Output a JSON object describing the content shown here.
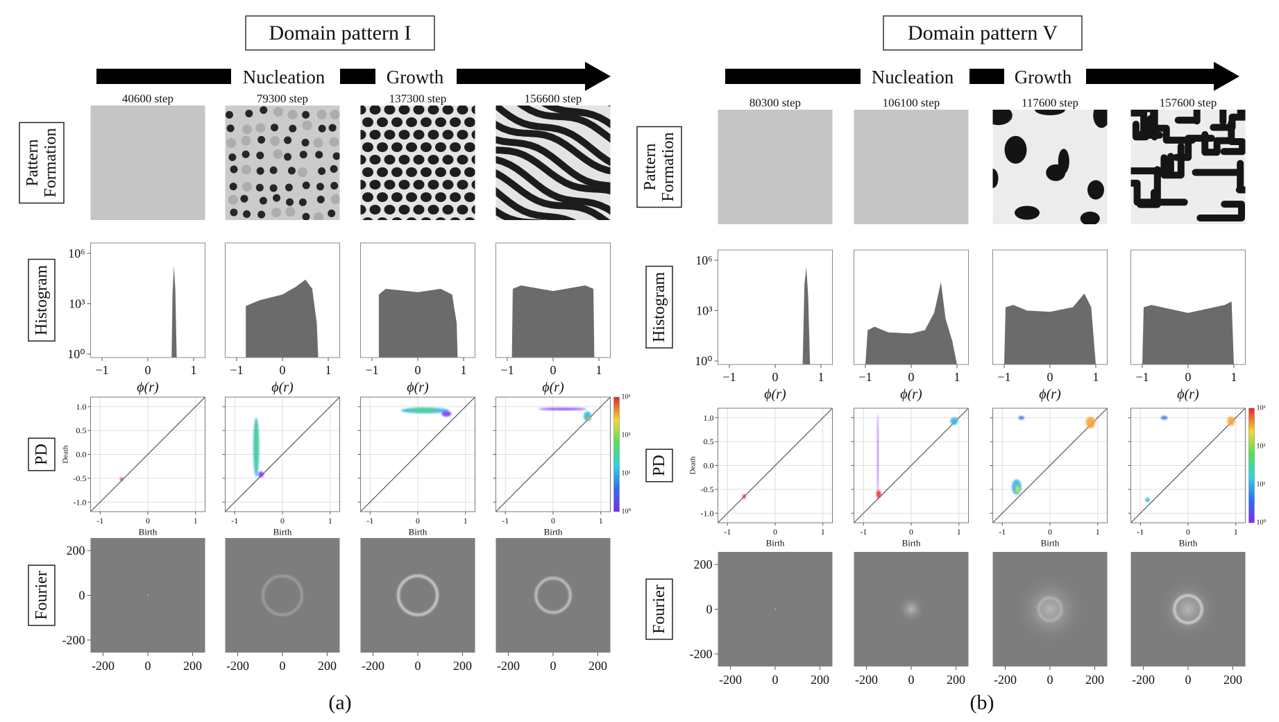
{
  "panels": [
    {
      "title": "Domain pattern I",
      "stages": [
        "Nucleation",
        "Growth"
      ],
      "label": "(a)",
      "row_labels": {
        "pattern": [
          "Pattern",
          "Formation"
        ],
        "histogram": "Histogram",
        "pd": "PD",
        "fourier": "Fourier"
      },
      "hist_yticks": [
        "10⁰",
        "10³",
        "10⁶"
      ],
      "pd_yticks": [
        "1.0",
        "0.5",
        "0.0",
        "-0.5",
        "-1.0"
      ],
      "pd_ylabel": "Death",
      "colorbar_ticks": [
        "10⁰",
        "10¹",
        "10²",
        "10³"
      ],
      "fourier_yticks": [
        "200",
        "0",
        "-200"
      ],
      "columns": [
        {
          "step": "40600  step",
          "hist_xticks": [
            "−1",
            "0",
            "1"
          ],
          "hist_xlabel": "ϕ(r)",
          "pd_xticks": [
            "-1",
            "0",
            "1"
          ],
          "pd_xlabel": "Birth",
          "fourier_xticks": [
            "-200",
            "0",
            "200"
          ]
        },
        {
          "step": "79300  step",
          "hist_xticks": [
            "−1",
            "0",
            "1"
          ],
          "hist_xlabel": "ϕ(r)",
          "pd_xticks": [
            "-1",
            "0",
            "1"
          ],
          "pd_xlabel": "Birth",
          "fourier_xticks": [
            "-200",
            "0",
            "200"
          ]
        },
        {
          "step": "137300  step",
          "hist_xticks": [
            "−1",
            "0",
            "1"
          ],
          "hist_xlabel": "ϕ(r)",
          "pd_xticks": [
            "-1",
            "0",
            "1"
          ],
          "pd_xlabel": "Birth",
          "fourier_xticks": [
            "-200",
            "0",
            "200"
          ]
        },
        {
          "step": "156600  step",
          "hist_xticks": [
            "−1",
            "0",
            "1"
          ],
          "hist_xlabel": "ϕ(r)",
          "pd_xticks": [
            "-1",
            "0",
            "1"
          ],
          "pd_xlabel": "Birth",
          "fourier_xticks": [
            "-200",
            "0",
            "200"
          ]
        }
      ]
    },
    {
      "title": "Domain pattern V",
      "stages": [
        "Nucleation",
        "Growth"
      ],
      "label": "(b)",
      "row_labels": {
        "pattern": [
          "Pattern",
          "Formation"
        ],
        "histogram": "Histogram",
        "pd": "PD",
        "fourier": "Fourier"
      },
      "hist_yticks": [
        "10⁰",
        "10³",
        "10⁶"
      ],
      "pd_yticks": [
        "1.0",
        "0.5",
        "0.0",
        "-0.5",
        "-1.0"
      ],
      "pd_ylabel": "Death",
      "colorbar_ticks": [
        "10⁰",
        "10¹",
        "10²",
        "10³"
      ],
      "fourier_yticks": [
        "200",
        "0",
        "-200"
      ],
      "columns": [
        {
          "step": "80300  step",
          "hist_xticks": [
            "−1",
            "0",
            "1"
          ],
          "hist_xlabel": "ϕ(r)",
          "pd_xticks": [
            "-1",
            "0",
            "1"
          ],
          "pd_xlabel": "Birth",
          "fourier_xticks": [
            "-200",
            "0",
            "200"
          ]
        },
        {
          "step": "106100  step",
          "hist_xticks": [
            "−1",
            "0",
            "1"
          ],
          "hist_xlabel": "ϕ(r)",
          "pd_xticks": [
            "-1",
            "0",
            "1"
          ],
          "pd_xlabel": "Birth",
          "fourier_xticks": [
            "-200",
            "0",
            "200"
          ]
        },
        {
          "step": "117600  step",
          "hist_xticks": [
            "−1",
            "0",
            "1"
          ],
          "hist_xlabel": "ϕ(r)",
          "pd_xticks": [
            "-1",
            "0",
            "1"
          ],
          "pd_xlabel": "Birth",
          "fourier_xticks": [
            "-200",
            "0",
            "200"
          ]
        },
        {
          "step": "157600  step",
          "hist_xticks": [
            "−1",
            "0",
            "1"
          ],
          "hist_xlabel": "ϕ(r)",
          "pd_xticks": [
            "-1",
            "0",
            "1"
          ],
          "pd_xlabel": "Birth",
          "fourier_xticks": [
            "-200",
            "0",
            "200"
          ]
        }
      ]
    }
  ]
}
